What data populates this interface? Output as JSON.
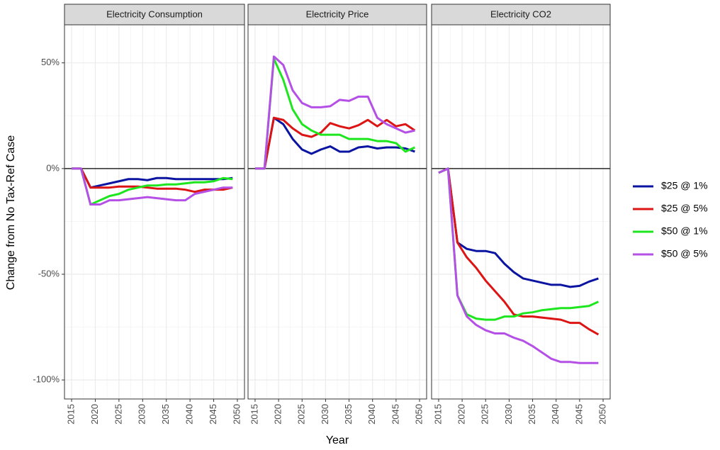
{
  "chart_data": {
    "type": "line",
    "xlabel": "Year",
    "ylabel": "Change from No Tax-Ref Case",
    "x": [
      2015,
      2017,
      2019,
      2021,
      2023,
      2025,
      2027,
      2029,
      2031,
      2033,
      2035,
      2037,
      2039,
      2041,
      2043,
      2045,
      2047,
      2049
    ],
    "xlim": [
      2013.5,
      2051.5
    ],
    "xticks": [
      2015,
      2020,
      2025,
      2030,
      2035,
      2040,
      2045,
      2050
    ],
    "x_minor_ticks": [
      2017.5,
      2022.5,
      2027.5,
      2032.5,
      2037.5,
      2042.5,
      2047.5
    ],
    "ylim": [
      -109,
      68
    ],
    "yticks": [
      {
        "value": -100,
        "label": "-100%"
      },
      {
        "value": -50,
        "label": "-50%"
      },
      {
        "value": 0,
        "label": "0%"
      },
      {
        "value": 50,
        "label": "50%"
      }
    ],
    "y_minor_ticks": [
      -75,
      -25,
      25
    ],
    "reference_line": 0,
    "grid": true,
    "legend": "right",
    "series": [
      {
        "name": "$25 @ 1%",
        "color": "#0a14a0"
      },
      {
        "name": "$25 @ 5%",
        "color": "#dc1414"
      },
      {
        "name": "$50 @ 1%",
        "color": "#1ee61e"
      },
      {
        "name": "$50 @ 5%",
        "color": "#b450e6"
      }
    ],
    "panels": [
      {
        "title": "Electricity Consumption",
        "values": [
          [
            0,
            0,
            -9,
            -8,
            -7,
            -6,
            -5,
            -5,
            -5.5,
            -4.5,
            -4.5,
            -5,
            -5,
            -5,
            -5,
            -5,
            -5,
            -4.5
          ],
          [
            0,
            0,
            -9,
            -9,
            -9,
            -8.5,
            -8.5,
            -8.5,
            -9,
            -9.5,
            -9.5,
            -9.5,
            -10,
            -11,
            -10,
            -10,
            -10,
            -9
          ],
          [
            0,
            0,
            -17,
            -15,
            -13,
            -12,
            -10,
            -9,
            -8,
            -8,
            -7.5,
            -7.5,
            -7,
            -6.5,
            -6.5,
            -6,
            -4.5,
            -5
          ],
          [
            0,
            0,
            -17,
            -17,
            -15,
            -15,
            -14.5,
            -14,
            -13.5,
            -14,
            -14.5,
            -15,
            -15,
            -12,
            -11,
            -10,
            -9,
            -9
          ]
        ]
      },
      {
        "title": "Electricity Price",
        "values": [
          [
            0,
            0,
            24,
            21,
            14,
            9,
            7,
            9,
            10.5,
            8,
            8,
            10,
            10.5,
            9.5,
            10,
            10,
            9.5,
            8
          ],
          [
            0,
            0,
            24,
            23,
            19,
            16,
            15,
            17,
            21.5,
            20,
            19,
            20.5,
            23,
            20,
            23,
            20,
            21,
            18
          ],
          [
            0,
            0,
            52,
            42,
            28,
            21,
            18,
            16,
            16,
            16,
            14,
            14,
            14,
            13,
            13,
            12,
            8,
            10
          ],
          [
            0,
            0,
            53,
            49,
            37,
            31,
            29,
            29,
            29.5,
            32.5,
            32,
            34,
            34,
            24,
            21,
            19,
            17,
            18
          ]
        ]
      },
      {
        "title": "Electricity CO2",
        "values": [
          [
            -2,
            0,
            -35,
            -38,
            -39,
            -39,
            -40,
            -45,
            -49,
            -52,
            -53,
            -54,
            -55,
            -55,
            -56,
            -55.5,
            -53.5,
            -52
          ],
          [
            -2,
            0,
            -35,
            -42,
            -47,
            -53,
            -58,
            -63,
            -69,
            -70,
            -70,
            -70.5,
            -71,
            -71.5,
            -73,
            -73,
            -76,
            -78.5
          ],
          [
            -2,
            0,
            -60,
            -69,
            -71,
            -71.5,
            -71.5,
            -70,
            -70,
            -68.5,
            -68,
            -67,
            -66.5,
            -66,
            -66,
            -65.5,
            -65,
            -63
          ],
          [
            -2,
            0,
            -60,
            -70,
            -74,
            -76.5,
            -78,
            -78,
            -80,
            -81.5,
            -84,
            -87,
            -90,
            -91.5,
            -91.5,
            -92,
            -92,
            -92
          ]
        ]
      }
    ]
  }
}
